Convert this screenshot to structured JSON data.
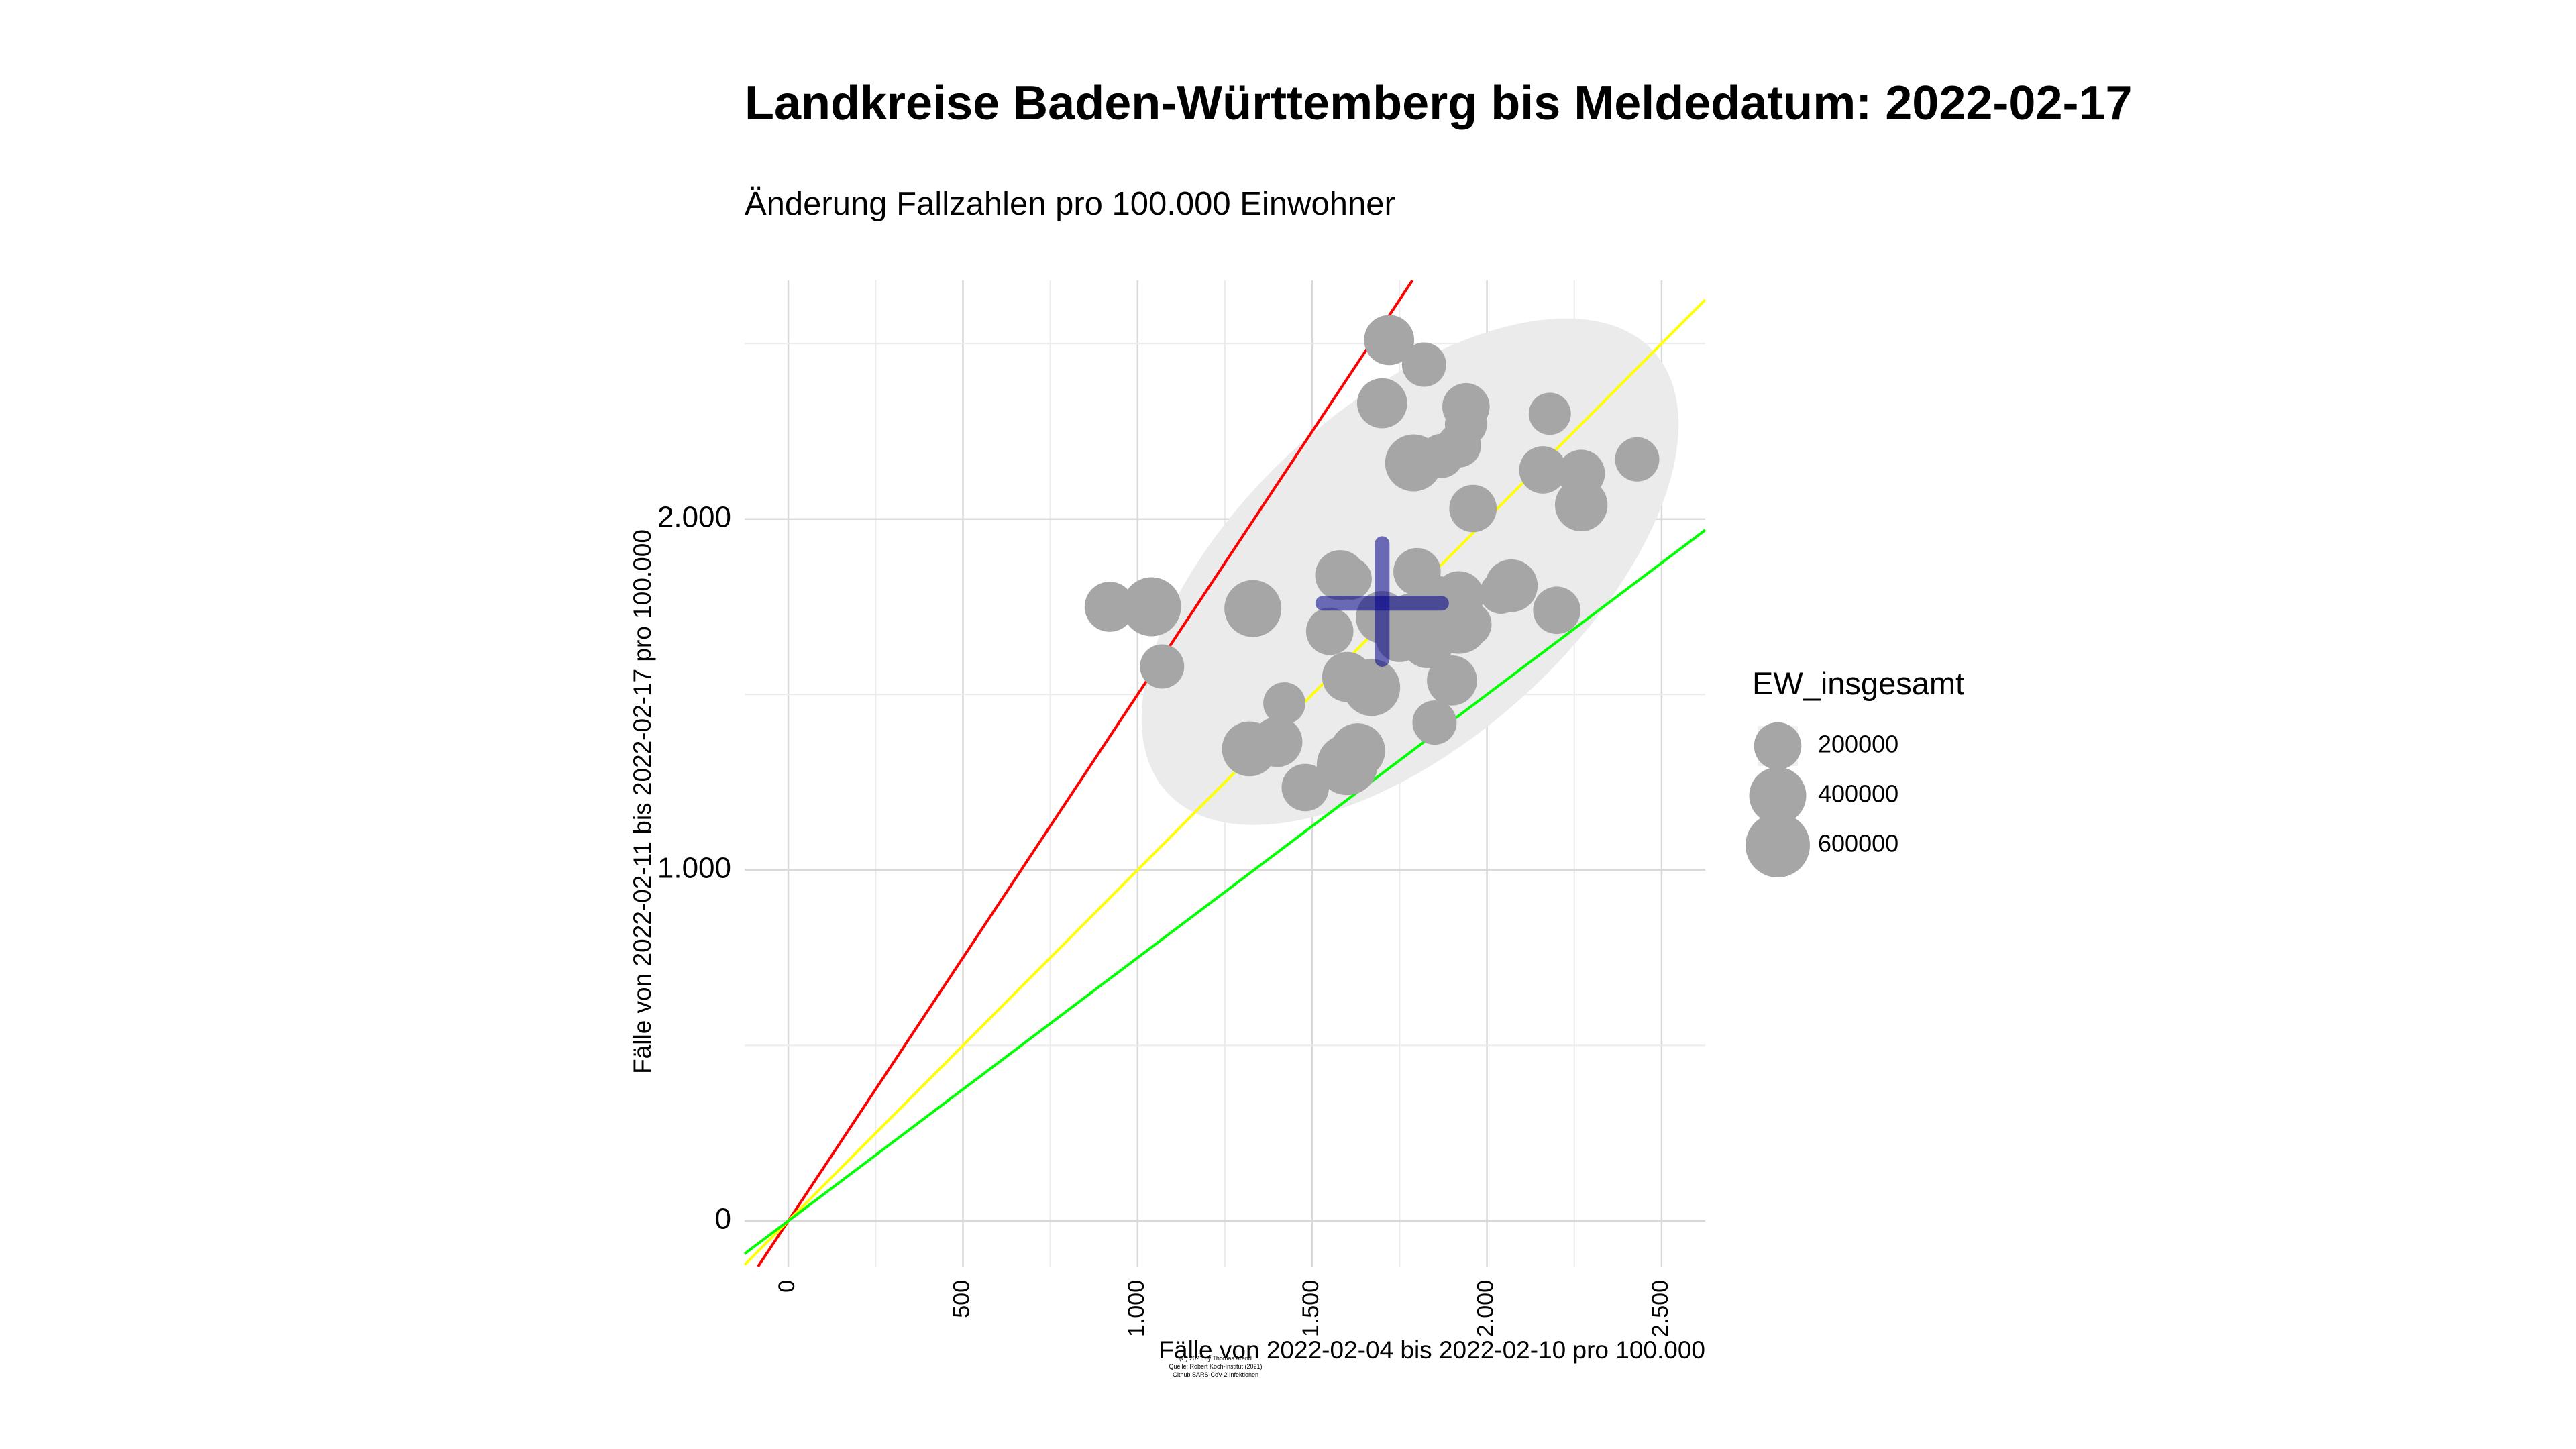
{
  "chart_data": {
    "type": "scatter",
    "title": "Landkreise Baden-Württemberg bis Meldedatum: 2022-02-17",
    "subtitle": "Änderung Fallzahlen pro 100.000 Einwohner",
    "xlabel": "Fälle von 2022-02-04 bis 2022-02-10 pro 100.000",
    "ylabel": "Fälle von 2022-02-11 bis 2022-02-17 pro 100.000",
    "xlim": [
      -125,
      2625
    ],
    "ylim": [
      -130,
      2680
    ],
    "x_ticks": [
      0,
      500,
      1000,
      1500,
      2000,
      2500
    ],
    "x_tick_labels": [
      "0",
      "500",
      "1.000",
      "1.500",
      "2.000",
      "2.500"
    ],
    "y_ticks": [
      0,
      1000,
      2000
    ],
    "y_tick_labels": [
      "0",
      "1.000",
      "2.000"
    ],
    "grid": true,
    "reference_lines": [
      {
        "color": "#ff0000",
        "slope": 1.5
      },
      {
        "color": "#ffff00",
        "slope": 1.0
      },
      {
        "color": "#00ff00",
        "slope": 0.75
      }
    ],
    "ellipse": {
      "cx": 1780,
      "cy": 1850,
      "rx": 940,
      "ry": 480,
      "rotation_deg": 42,
      "color": "#ebebeb"
    },
    "mean_cross": {
      "x": 1700,
      "y": 1760,
      "x_range": [
        1530,
        1870
      ],
      "y_range": [
        1600,
        1930
      ],
      "color": "#00008b"
    },
    "point_color": "#a6a6a6",
    "points": [
      {
        "x": 920,
        "y": 1750,
        "size": 250000
      },
      {
        "x": 1040,
        "y": 1750,
        "size": 450000
      },
      {
        "x": 1070,
        "y": 1580,
        "size": 150000
      },
      {
        "x": 1330,
        "y": 1745,
        "size": 400000
      },
      {
        "x": 1320,
        "y": 1345,
        "size": 350000
      },
      {
        "x": 1400,
        "y": 1365,
        "size": 250000
      },
      {
        "x": 1420,
        "y": 1475,
        "size": 120000
      },
      {
        "x": 1480,
        "y": 1235,
        "size": 200000
      },
      {
        "x": 1550,
        "y": 1680,
        "size": 200000
      },
      {
        "x": 1580,
        "y": 1840,
        "size": 250000
      },
      {
        "x": 1610,
        "y": 1830,
        "size": 120000
      },
      {
        "x": 1600,
        "y": 1550,
        "size": 250000
      },
      {
        "x": 1630,
        "y": 1340,
        "size": 350000
      },
      {
        "x": 1600,
        "y": 1300,
        "size": 500000
      },
      {
        "x": 1670,
        "y": 1520,
        "size": 400000
      },
      {
        "x": 1700,
        "y": 2330,
        "size": 250000
      },
      {
        "x": 1720,
        "y": 2510,
        "size": 250000
      },
      {
        "x": 1700,
        "y": 1720,
        "size": 300000
      },
      {
        "x": 1750,
        "y": 1660,
        "size": 200000
      },
      {
        "x": 1780,
        "y": 1720,
        "size": 200000
      },
      {
        "x": 1790,
        "y": 2160,
        "size": 400000
      },
      {
        "x": 1800,
        "y": 1850,
        "size": 200000
      },
      {
        "x": 1820,
        "y": 2440,
        "size": 150000
      },
      {
        "x": 1830,
        "y": 1650,
        "size": 300000
      },
      {
        "x": 1850,
        "y": 1420,
        "size": 150000
      },
      {
        "x": 1860,
        "y": 1770,
        "size": 200000
      },
      {
        "x": 1870,
        "y": 2180,
        "size": 150000
      },
      {
        "x": 1890,
        "y": 1710,
        "size": 300000
      },
      {
        "x": 1900,
        "y": 1540,
        "size": 250000
      },
      {
        "x": 1920,
        "y": 1700,
        "size": 450000
      },
      {
        "x": 1920,
        "y": 1780,
        "size": 250000
      },
      {
        "x": 1920,
        "y": 2210,
        "size": 150000
      },
      {
        "x": 1940,
        "y": 2320,
        "size": 200000
      },
      {
        "x": 1940,
        "y": 2270,
        "size": 120000
      },
      {
        "x": 1950,
        "y": 1700,
        "size": 150000
      },
      {
        "x": 1960,
        "y": 2030,
        "size": 200000
      },
      {
        "x": 2040,
        "y": 1790,
        "size": 120000
      },
      {
        "x": 2070,
        "y": 1810,
        "size": 300000
      },
      {
        "x": 2160,
        "y": 2140,
        "size": 200000
      },
      {
        "x": 2180,
        "y": 2300,
        "size": 120000
      },
      {
        "x": 2200,
        "y": 1740,
        "size": 200000
      },
      {
        "x": 2270,
        "y": 2130,
        "size": 200000
      },
      {
        "x": 2270,
        "y": 2040,
        "size": 300000
      },
      {
        "x": 2430,
        "y": 2170,
        "size": 150000
      }
    ],
    "legend": {
      "title": "EW_insgesamt",
      "entries": [
        {
          "label": "200000",
          "size": 200000
        },
        {
          "label": "400000",
          "size": 400000
        },
        {
          "label": "600000",
          "size": 600000
        }
      ],
      "placement": "right"
    },
    "caption": [
      "(C) 2021 by Thomas Arend",
      "Quelle: Robert Koch-Institut (2021)",
      "Github SARS-CoV-2 Infektionen"
    ]
  }
}
